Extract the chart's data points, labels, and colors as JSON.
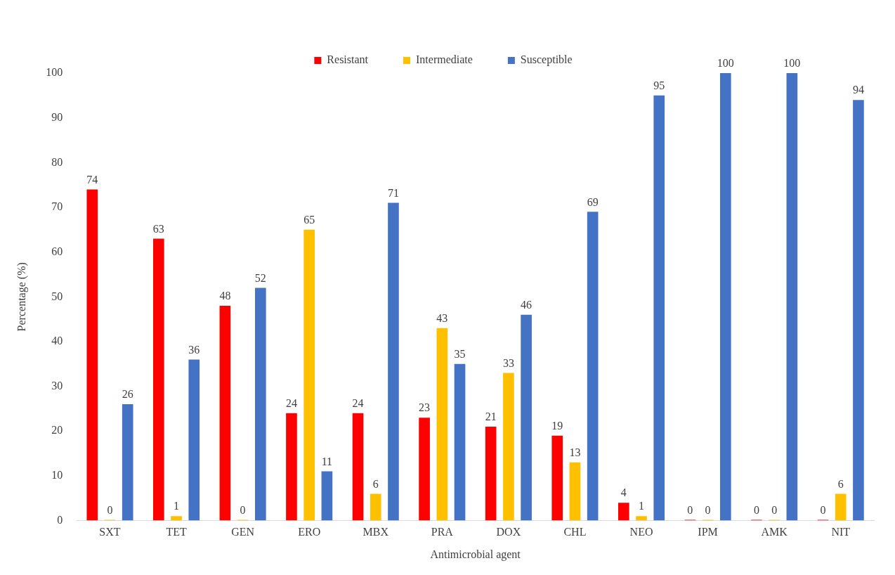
{
  "chart_data": {
    "type": "bar",
    "xlabel": "Antimicrobial agent",
    "ylabel": "Percentage (%)",
    "categories": [
      "SXT",
      "TET",
      "GEN",
      "ERO",
      "MBX",
      "PRA",
      "DOX",
      "CHL",
      "NEO",
      "IPM",
      "AMK",
      "NIT"
    ],
    "series": [
      {
        "name": "Resistant",
        "color": "#ff0000",
        "values": [
          74,
          63,
          48,
          24,
          24,
          23,
          21,
          19,
          4,
          0,
          0,
          0
        ]
      },
      {
        "name": "Intermediate",
        "color": "#ffc000",
        "values": [
          0,
          1,
          0,
          65,
          6,
          43,
          33,
          13,
          1,
          0,
          0,
          6
        ]
      },
      {
        "name": "Susceptible",
        "color": "#4472c4",
        "values": [
          26,
          36,
          52,
          11,
          71,
          35,
          46,
          69,
          95,
          100,
          100,
          94
        ]
      }
    ],
    "ylim": [
      0,
      100
    ],
    "yticks": [
      0,
      10,
      20,
      30,
      40,
      50,
      60,
      70,
      80,
      90,
      100
    ],
    "grid": false,
    "legend": "top",
    "data_labels": true
  }
}
